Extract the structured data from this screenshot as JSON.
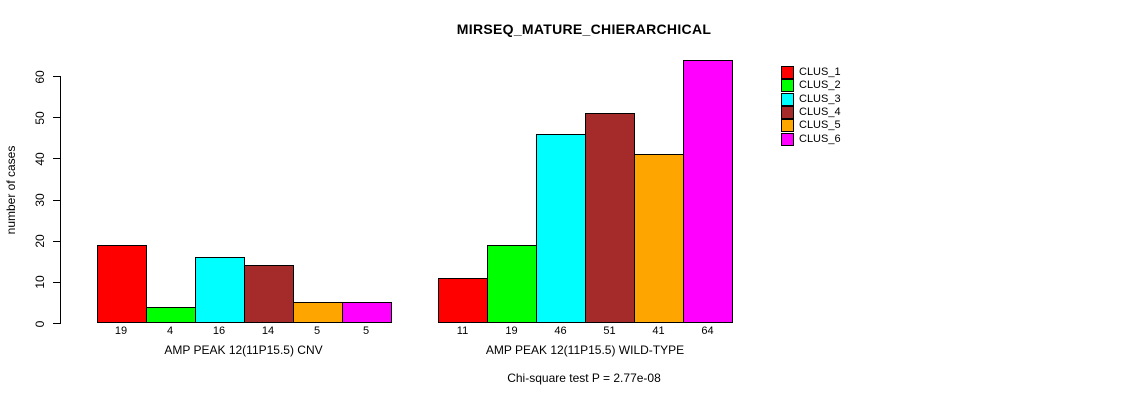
{
  "title": "MIRSEQ_MATURE_CHIERARCHICAL",
  "footnote": "Chi-square test P = 2.77e-08",
  "chart_data": {
    "type": "bar",
    "title": "MIRSEQ_MATURE_CHIERARCHICAL",
    "ylabel": "number of cases",
    "xlabel": "",
    "ylim": [
      0,
      64
    ],
    "yticks": [
      0,
      10,
      20,
      30,
      40,
      50,
      60
    ],
    "grid": false,
    "legend_position": "top-right",
    "series": [
      {
        "name": "CLUS_1",
        "color": "#FF0000"
      },
      {
        "name": "CLUS_2",
        "color": "#00FF00"
      },
      {
        "name": "CLUS_3",
        "color": "#00FFFF"
      },
      {
        "name": "CLUS_4",
        "color": "#A52A2A"
      },
      {
        "name": "CLUS_5",
        "color": "#FFA500"
      },
      {
        "name": "CLUS_6",
        "color": "#FF00FF"
      }
    ],
    "groups": [
      {
        "label": "AMP PEAK 12(11P15.5) CNV",
        "values": [
          19,
          4,
          16,
          14,
          5,
          5
        ]
      },
      {
        "label": "AMP PEAK 12(11P15.5) WILD-TYPE",
        "values": [
          11,
          19,
          46,
          51,
          41,
          64
        ]
      }
    ],
    "annotation": "Chi-square test P = 2.77e-08",
    "axis_color": "#000000",
    "background_color": "#FFFFFF"
  }
}
